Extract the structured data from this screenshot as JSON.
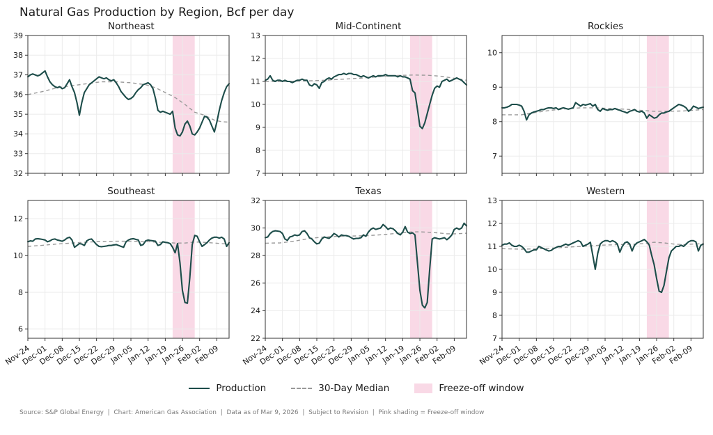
{
  "title": "Natural Gas Production by Region, Bcf per day",
  "footer": "Source: S&P Global Energy  |  Chart: American Gas Association  |  Data as of Mar 9, 2026  |  Subject to Revision  |  Pink shading = Freeze-off window",
  "legend": [
    {
      "label": "Production",
      "swatch": "solid-line"
    },
    {
      "label": "30-Day Median",
      "swatch": "dashed-line"
    },
    {
      "label": "Freeze-off window",
      "swatch": "pink-patch"
    }
  ],
  "colors": {
    "production": "#1d4d4a",
    "median": "#999999",
    "freeze": "#f9d9e6",
    "grid": "#ebebeb",
    "spine": "#333333",
    "text": "#1a1a1a"
  },
  "x_axis": {
    "unit": "day index from Nov-24",
    "total_days": 82,
    "tick_days": [
      0,
      7,
      14,
      21,
      28,
      35,
      42,
      49,
      56,
      63,
      70,
      77
    ],
    "tick_labels": [
      "Nov-24",
      "Dec-01",
      "Dec-08",
      "Dec-15",
      "Dec-22",
      "Dec-29",
      "Jan-05",
      "Jan-12",
      "Jan-19",
      "Jan-26",
      "Feb-02",
      "Feb-09"
    ]
  },
  "freeze_window": {
    "start_day": 59,
    "end_day": 68
  },
  "chart_data": [
    {
      "type": "line",
      "title": "Northeast",
      "ylim": [
        32,
        39
      ],
      "yticks": [
        32,
        33,
        34,
        35,
        36,
        37,
        38,
        39
      ],
      "show_x_labels": false,
      "series": [
        {
          "name": "Production",
          "values": [
            36.9,
            37.0,
            37.05,
            37.0,
            36.95,
            37.0,
            37.1,
            37.2,
            36.9,
            36.65,
            36.5,
            36.4,
            36.35,
            36.4,
            36.3,
            36.35,
            36.55,
            36.75,
            36.4,
            36.1,
            35.6,
            34.95,
            35.6,
            36.1,
            36.3,
            36.5,
            36.6,
            36.7,
            36.8,
            36.9,
            36.85,
            36.8,
            36.85,
            36.75,
            36.7,
            36.75,
            36.6,
            36.4,
            36.15,
            36.0,
            35.85,
            35.75,
            35.8,
            35.9,
            36.1,
            36.25,
            36.35,
            36.5,
            36.55,
            36.6,
            36.5,
            36.3,
            35.8,
            35.2,
            35.1,
            35.15,
            35.1,
            35.05,
            35.0,
            35.15,
            34.3,
            33.95,
            33.9,
            34.1,
            34.5,
            34.65,
            34.4,
            34.0,
            33.95,
            34.1,
            34.3,
            34.6,
            34.9,
            34.85,
            34.7,
            34.4,
            34.1,
            34.6,
            35.2,
            35.7,
            36.1,
            36.4,
            36.55
          ]
        },
        {
          "name": "30-Day Median",
          "anchors_x": [
            0,
            6,
            12,
            18,
            24,
            30,
            36,
            42,
            48,
            52,
            56,
            60,
            64,
            68,
            72,
            76,
            79,
            82
          ],
          "anchors_y": [
            36.0,
            36.15,
            36.35,
            36.45,
            36.55,
            36.65,
            36.65,
            36.6,
            36.5,
            36.35,
            36.1,
            35.85,
            35.5,
            35.1,
            34.95,
            34.7,
            34.62,
            34.6
          ]
        }
      ]
    },
    {
      "type": "line",
      "title": "Mid-Continent",
      "ylim": [
        7,
        13
      ],
      "yticks": [
        7,
        8,
        9,
        10,
        11,
        12,
        13
      ],
      "show_x_labels": false,
      "series": [
        {
          "name": "Production",
          "values": [
            11.05,
            11.1,
            11.25,
            11.05,
            11.0,
            11.05,
            11.05,
            11.0,
            11.05,
            11.0,
            11.0,
            10.95,
            11.0,
            11.05,
            11.05,
            11.1,
            11.05,
            11.05,
            10.85,
            10.8,
            10.9,
            10.85,
            10.7,
            10.95,
            11.0,
            11.1,
            11.15,
            11.1,
            11.2,
            11.25,
            11.3,
            11.3,
            11.35,
            11.3,
            11.35,
            11.35,
            11.3,
            11.3,
            11.25,
            11.2,
            11.25,
            11.2,
            11.15,
            11.2,
            11.25,
            11.2,
            11.25,
            11.25,
            11.25,
            11.3,
            11.25,
            11.25,
            11.25,
            11.25,
            11.2,
            11.25,
            11.2,
            11.2,
            11.15,
            11.1,
            10.6,
            10.5,
            9.8,
            9.05,
            8.95,
            9.2,
            9.6,
            10.0,
            10.4,
            10.7,
            10.8,
            10.75,
            11.0,
            11.05,
            11.1,
            11.0,
            11.05,
            11.1,
            11.15,
            11.1,
            11.05,
            10.95,
            10.85
          ]
        },
        {
          "name": "30-Day Median",
          "anchors_x": [
            0,
            8,
            16,
            24,
            32,
            40,
            48,
            54,
            60,
            66,
            72,
            78,
            82
          ],
          "anchors_y": [
            11.0,
            11.0,
            11.02,
            11.05,
            11.1,
            11.15,
            11.22,
            11.26,
            11.28,
            11.27,
            11.22,
            11.12,
            11.05
          ]
        }
      ]
    },
    {
      "type": "line",
      "title": "Rockies",
      "ylim": [
        6.5,
        10.5
      ],
      "yticks": [
        7,
        8,
        9,
        10
      ],
      "show_x_labels": false,
      "series": [
        {
          "name": "Production",
          "values": [
            8.4,
            8.4,
            8.42,
            8.45,
            8.5,
            8.5,
            8.5,
            8.48,
            8.45,
            8.3,
            8.05,
            8.2,
            8.25,
            8.28,
            8.3,
            8.32,
            8.35,
            8.35,
            8.38,
            8.4,
            8.4,
            8.38,
            8.4,
            8.35,
            8.38,
            8.4,
            8.38,
            8.36,
            8.38,
            8.4,
            8.55,
            8.5,
            8.45,
            8.5,
            8.48,
            8.5,
            8.52,
            8.45,
            8.5,
            8.35,
            8.3,
            8.38,
            8.35,
            8.33,
            8.35,
            8.35,
            8.38,
            8.35,
            8.33,
            8.3,
            8.28,
            8.25,
            8.3,
            8.32,
            8.35,
            8.3,
            8.28,
            8.3,
            8.25,
            8.1,
            8.2,
            8.15,
            8.1,
            8.12,
            8.2,
            8.25,
            8.25,
            8.28,
            8.3,
            8.35,
            8.4,
            8.45,
            8.5,
            8.48,
            8.45,
            8.4,
            8.3,
            8.35,
            8.45,
            8.42,
            8.38,
            8.4,
            8.42
          ]
        },
        {
          "name": "30-Day Median",
          "anchors_x": [
            0,
            8,
            14,
            20,
            26,
            32,
            38,
            44,
            50,
            56,
            62,
            68,
            74,
            82
          ],
          "anchors_y": [
            8.2,
            8.2,
            8.27,
            8.33,
            8.37,
            8.4,
            8.4,
            8.38,
            8.36,
            8.33,
            8.3,
            8.3,
            8.31,
            8.35
          ]
        }
      ]
    },
    {
      "type": "line",
      "title": "Southeast",
      "ylim": [
        5.5,
        13
      ],
      "yticks": [
        6,
        8,
        10,
        12
      ],
      "show_x_labels": true,
      "series": [
        {
          "name": "Production",
          "values": [
            10.75,
            10.8,
            10.78,
            10.9,
            10.92,
            10.9,
            10.88,
            10.85,
            10.75,
            10.8,
            10.88,
            10.9,
            10.85,
            10.82,
            10.78,
            10.85,
            10.95,
            11.0,
            10.85,
            10.45,
            10.55,
            10.65,
            10.63,
            10.55,
            10.8,
            10.88,
            10.9,
            10.75,
            10.6,
            10.5,
            10.48,
            10.5,
            10.52,
            10.55,
            10.55,
            10.58,
            10.6,
            10.55,
            10.5,
            10.45,
            10.75,
            10.85,
            10.9,
            10.92,
            10.88,
            10.85,
            10.55,
            10.6,
            10.8,
            10.85,
            10.82,
            10.8,
            10.78,
            10.55,
            10.6,
            10.75,
            10.72,
            10.7,
            10.65,
            10.45,
            10.15,
            10.65,
            9.6,
            8.1,
            7.45,
            7.4,
            8.8,
            10.6,
            11.1,
            11.05,
            10.75,
            10.5,
            10.6,
            10.7,
            10.85,
            10.95,
            11.0,
            11.0,
            10.95,
            11.0,
            10.9,
            10.5,
            10.7
          ]
        },
        {
          "name": "30-Day Median",
          "anchors_x": [
            0,
            6,
            12,
            18,
            24,
            30,
            36,
            42,
            48,
            54,
            60,
            64,
            68,
            72,
            76,
            80,
            82
          ],
          "anchors_y": [
            10.5,
            10.56,
            10.63,
            10.68,
            10.73,
            10.77,
            10.78,
            10.78,
            10.76,
            10.72,
            10.68,
            10.68,
            10.74,
            10.72,
            10.68,
            10.64,
            10.68
          ]
        }
      ]
    },
    {
      "type": "line",
      "title": "Texas",
      "ylim": [
        22,
        32
      ],
      "yticks": [
        22,
        24,
        26,
        28,
        30,
        32
      ],
      "show_x_labels": true,
      "series": [
        {
          "name": "Production",
          "values": [
            29.3,
            29.35,
            29.6,
            29.75,
            29.8,
            29.78,
            29.75,
            29.6,
            29.2,
            29.1,
            29.35,
            29.4,
            29.5,
            29.45,
            29.5,
            29.75,
            29.8,
            29.6,
            29.3,
            29.2,
            29.0,
            28.85,
            28.9,
            29.2,
            29.35,
            29.3,
            29.25,
            29.4,
            29.6,
            29.5,
            29.35,
            29.5,
            29.45,
            29.45,
            29.4,
            29.3,
            29.2,
            29.25,
            29.25,
            29.3,
            29.5,
            29.4,
            29.7,
            29.9,
            30.0,
            29.9,
            29.95,
            30.0,
            30.25,
            30.1,
            29.9,
            30.0,
            29.95,
            29.8,
            29.6,
            29.5,
            29.7,
            30.1,
            29.7,
            29.6,
            29.65,
            29.5,
            27.5,
            25.5,
            24.4,
            24.2,
            24.6,
            27.0,
            29.2,
            29.3,
            29.25,
            29.2,
            29.25,
            29.3,
            29.15,
            29.3,
            29.5,
            29.9,
            30.0,
            29.9,
            30.0,
            30.35,
            30.15
          ]
        },
        {
          "name": "30-Day Median",
          "anchors_x": [
            0,
            6,
            12,
            18,
            24,
            30,
            36,
            42,
            48,
            54,
            58,
            62,
            66,
            70,
            74,
            78,
            82
          ],
          "anchors_y": [
            28.9,
            28.92,
            29.05,
            29.25,
            29.35,
            29.4,
            29.42,
            29.45,
            29.52,
            29.62,
            29.7,
            29.72,
            29.7,
            29.65,
            29.58,
            29.58,
            29.62
          ]
        }
      ]
    },
    {
      "type": "line",
      "title": "Western",
      "ylim": [
        7,
        13
      ],
      "yticks": [
        7,
        8,
        9,
        10,
        11,
        12,
        13
      ],
      "show_x_labels": true,
      "series": [
        {
          "name": "Production",
          "values": [
            11.05,
            11.1,
            11.1,
            11.15,
            11.05,
            11.0,
            11.0,
            11.05,
            11.0,
            10.9,
            10.75,
            10.75,
            10.8,
            10.85,
            10.85,
            11.0,
            10.95,
            10.9,
            10.85,
            10.8,
            10.82,
            10.9,
            10.95,
            11.0,
            11.0,
            11.05,
            11.1,
            11.05,
            11.1,
            11.15,
            11.2,
            11.25,
            11.2,
            11.0,
            11.05,
            11.1,
            11.18,
            10.6,
            10.0,
            10.7,
            11.1,
            11.2,
            11.25,
            11.25,
            11.2,
            11.25,
            11.2,
            11.1,
            10.75,
            11.0,
            11.15,
            11.2,
            11.1,
            10.8,
            11.05,
            11.15,
            11.2,
            11.25,
            11.3,
            11.2,
            11.05,
            10.6,
            10.2,
            9.6,
            9.05,
            9.0,
            9.3,
            9.9,
            10.5,
            10.8,
            10.9,
            11.0,
            11.0,
            11.05,
            11.0,
            11.1,
            11.2,
            11.25,
            11.25,
            11.2,
            10.8,
            11.05,
            11.1
          ]
        },
        {
          "name": "30-Day Median",
          "anchors_x": [
            0,
            8,
            16,
            24,
            32,
            40,
            48,
            54,
            58,
            62,
            66,
            70,
            74,
            78,
            82
          ],
          "anchors_y": [
            10.9,
            10.88,
            10.9,
            10.95,
            11.0,
            11.05,
            11.08,
            11.1,
            11.12,
            11.18,
            11.15,
            11.1,
            11.08,
            11.1,
            11.12
          ]
        }
      ]
    }
  ]
}
